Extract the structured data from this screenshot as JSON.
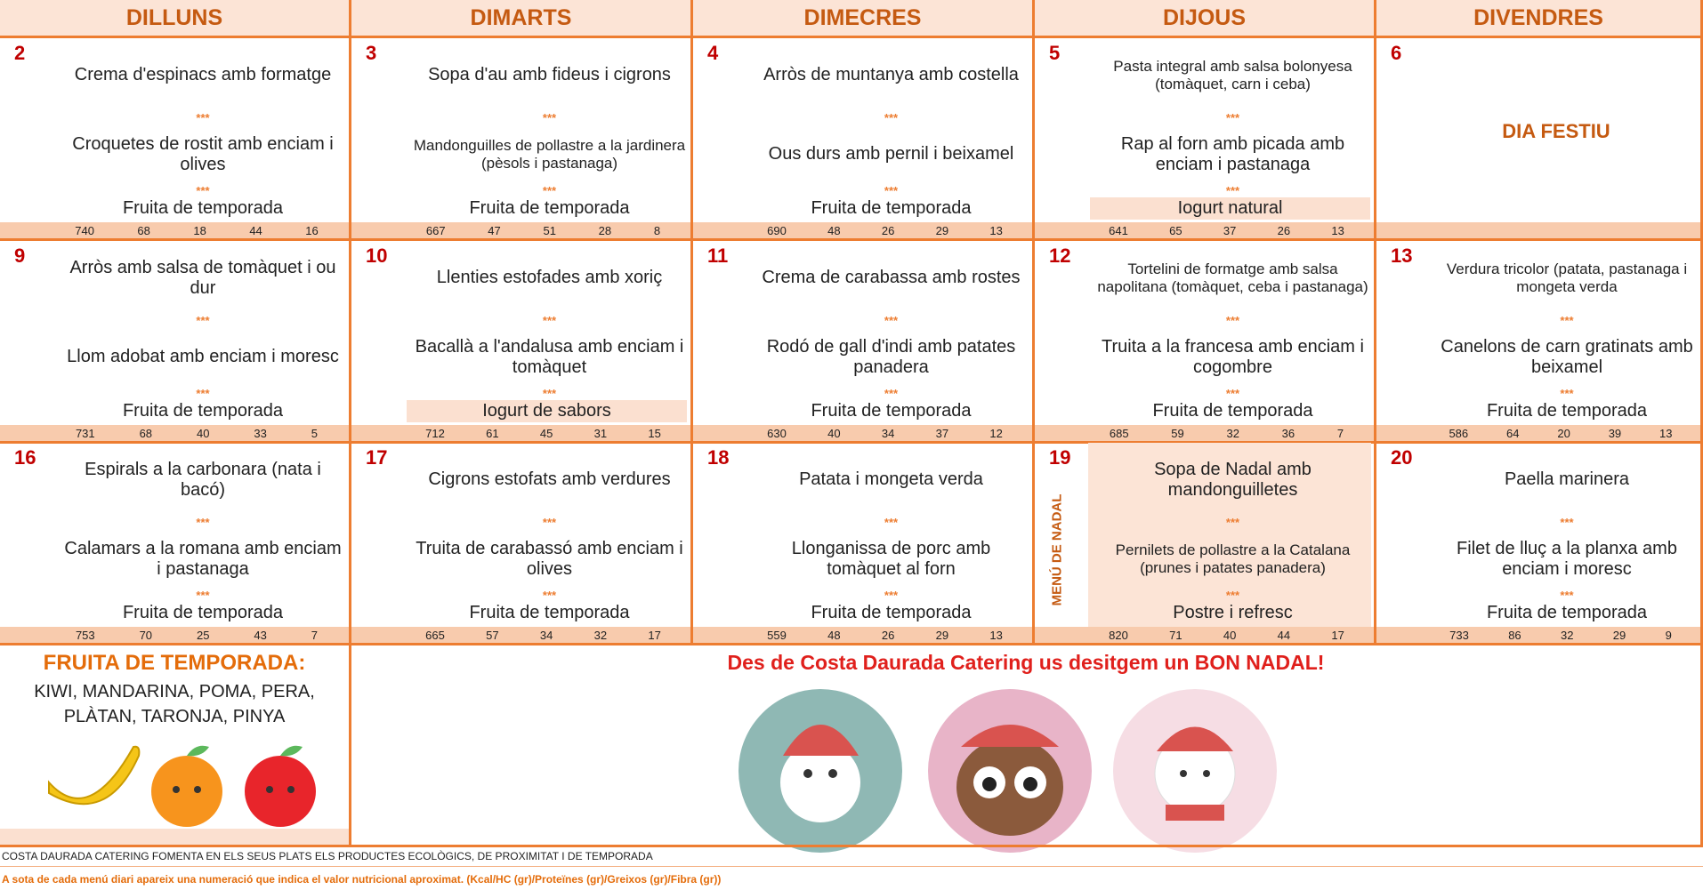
{
  "header": {
    "days": [
      "DILLUNS",
      "DIMARTS",
      "DIMECRES",
      "DIJOUS",
      "DIVENDRES"
    ]
  },
  "separator": "***",
  "weeks": [
    [
      {
        "day": 2,
        "first": "Crema d'espinacs amb formatge",
        "second": "Croquetes de rostit amb enciam i olives",
        "dessert": "Fruita de temporada",
        "nutrition": [
          740,
          68,
          18,
          44,
          16
        ]
      },
      {
        "day": 3,
        "first": "Sopa d'au amb fideus i cigrons",
        "second": "Mandonguilles de pollastre a la jardinera (pèsols i pastanaga)",
        "dessert": "Fruita de temporada",
        "nutrition": [
          667,
          47,
          51,
          28,
          8
        ]
      },
      {
        "day": 4,
        "first": "Arròs de muntanya amb costella",
        "second": "Ous durs amb pernil i beixamel",
        "dessert": "Fruita de temporada",
        "nutrition": [
          690,
          48,
          26,
          29,
          13
        ]
      },
      {
        "day": 5,
        "first": "Pasta integral amb salsa bolonyesa (tomàquet, carn i ceba)",
        "second": "Rap al forn amb picada amb enciam i pastanaga",
        "dessert": "Iogurt natural",
        "highlight": true,
        "nutrition": [
          641,
          65,
          37,
          26,
          13
        ]
      },
      {
        "day": 6,
        "note": "DIA FESTIU"
      }
    ],
    [
      {
        "day": 9,
        "first": "Arròs amb salsa de tomàquet i ou dur",
        "second": "Llom adobat amb enciam i moresc",
        "dessert": "Fruita de temporada",
        "nutrition": [
          731,
          68,
          40,
          33,
          5
        ]
      },
      {
        "day": 10,
        "first": "Llenties estofades amb xoriç",
        "second": "Bacallà a l'andalusa amb enciam i tomàquet",
        "dessert": "Iogurt de sabors",
        "highlight": true,
        "nutrition": [
          712,
          61,
          45,
          31,
          15
        ]
      },
      {
        "day": 11,
        "first": "Crema de carabassa amb rostes",
        "second": "Rodó de gall d'indi amb patates panadera",
        "dessert": "Fruita de temporada",
        "nutrition": [
          630,
          40,
          34,
          37,
          12
        ]
      },
      {
        "day": 12,
        "first": "Tortelini de formatge amb salsa napolitana (tomàquet, ceba i pastanaga)",
        "second": "Truita a la francesa amb enciam i cogombre",
        "dessert": "Fruita de temporada",
        "nutrition": [
          685,
          59,
          32,
          36,
          7
        ]
      },
      {
        "day": 13,
        "first": "Verdura tricolor (patata, pastanaga i mongeta verda",
        "second": "Canelons de carn gratinats amb beixamel",
        "dessert": "Fruita de temporada",
        "nutrition": [
          586,
          64,
          20,
          39,
          13
        ]
      }
    ],
    [
      {
        "day": 16,
        "first": "Espirals a la carbonara (nata i bacó)",
        "second": "Calamars a la romana amb enciam i pastanaga",
        "dessert": "Fruita de temporada",
        "nutrition": [
          753,
          70,
          25,
          43,
          7
        ]
      },
      {
        "day": 17,
        "first": "Cigrons estofats amb verdures",
        "second": "Truita de carabassó amb enciam i olives",
        "dessert": "Fruita de temporada",
        "nutrition": [
          665,
          57,
          34,
          32,
          17
        ]
      },
      {
        "day": 18,
        "first": "Patata i mongeta verda",
        "second": "Llonganissa de porc amb tomàquet al forn",
        "dessert": "Fruita de temporada",
        "nutrition": [
          559,
          48,
          26,
          29,
          13
        ]
      },
      {
        "day": 19,
        "label": "MENÚ DE NADAL",
        "first": "Sopa de Nadal amb mandonguilletes",
        "second": "Pernilets de pollastre a la Catalana (prunes i patates panadera)",
        "dessert": "Postre i refresc",
        "nutrition": [
          820,
          71,
          40,
          44,
          17
        ]
      },
      {
        "day": 20,
        "first": "Paella marinera",
        "second": "Filet de lluç a la planxa amb enciam i moresc",
        "dessert": "Fruita de temporada",
        "nutrition": [
          733,
          86,
          32,
          29,
          9
        ]
      }
    ]
  ],
  "fruit_box": {
    "title": "FRUITA DE TEMPORADA:",
    "list": "KIWI, MANDARINA, POMA, PERA, PLÀTAN, TARONJA, PINYA"
  },
  "greeting": "Des de Costa Daurada Catering us desitgem un BON NADAL!",
  "footer": {
    "line1": "COSTA DAURADA CATERING FOMENTA EN ELS SEUS PLATS ELS PRODUCTES ECOLÒGICS, DE PROXIMITAT I DE TEMPORADA",
    "line2": "A sota de cada menú diari apareix una numeració que indica el valor nutricional aproximat. (Kcal/HC (gr)/Proteïnes (gr)/Greixos (gr)/Fibra (gr))"
  }
}
